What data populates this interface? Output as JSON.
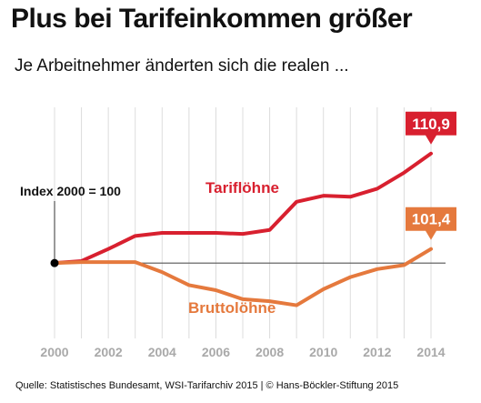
{
  "header": {
    "title": "Plus bei Tarifeinkommen größer",
    "subtitle": "Je Arbeitnehmer änderten sich die realen ..."
  },
  "footer": {
    "source": "Quelle: Statistisches Bundesamt, WSI-Tarifarchiv 2015 | © Hans-Böckler-Stiftung 2015"
  },
  "colors": {
    "tarif": "#d8202f",
    "brutto": "#e5793d",
    "axis": "#555555",
    "grid": "#dcdcdc",
    "tick": "#a9a9a9"
  },
  "chart_data": {
    "type": "line",
    "x": [
      2000,
      2001,
      2002,
      2003,
      2004,
      2005,
      2006,
      2007,
      2008,
      2009,
      2010,
      2011,
      2012,
      2013,
      2014
    ],
    "x_tick_labels": [
      "2000",
      "2002",
      "2004",
      "2006",
      "2008",
      "2010",
      "2012",
      "2014"
    ],
    "x_ticks": [
      2000,
      2002,
      2004,
      2006,
      2008,
      2010,
      2012,
      2014
    ],
    "ylim": [
      92.5,
      115.5
    ],
    "baseline": 100,
    "baseline_label": "Index 2000 = 100",
    "grid": "vertical",
    "series": [
      {
        "name": "Tariflöhne",
        "color_key": "tarif",
        "values": [
          100,
          100.2,
          101.4,
          102.7,
          103.0,
          103.0,
          103.0,
          102.9,
          103.3,
          106.1,
          106.7,
          106.6,
          107.4,
          109.0,
          110.9
        ],
        "end_label": "110,9"
      },
      {
        "name": "Bruttolöhne",
        "color_key": "brutto",
        "values": [
          100,
          100.1,
          100.1,
          100.1,
          99.1,
          97.8,
          97.3,
          96.4,
          96.2,
          95.8,
          97.4,
          98.6,
          99.4,
          99.8,
          101.4
        ],
        "end_label": "101,4"
      }
    ]
  }
}
